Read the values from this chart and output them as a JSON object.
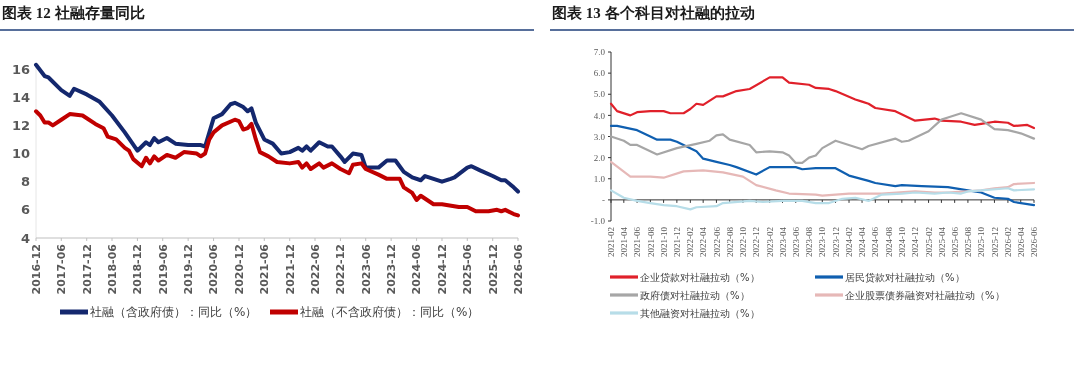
{
  "chart_data": [
    {
      "type": "line",
      "title": "图表 12 社融存量同比",
      "legend": "bottom",
      "grid": false,
      "ylim": [
        4,
        16.5
      ],
      "yticks": [
        4,
        6,
        8,
        10,
        12,
        14,
        16
      ],
      "xlim": [
        "2016-12",
        "2026-06"
      ],
      "xticks": [
        "2016-12",
        "2017-06",
        "2017-12",
        "2018-06",
        "2018-12",
        "2019-06",
        "2019-12",
        "2020-06",
        "2020-12",
        "2021-06",
        "2021-12",
        "2022-06",
        "2022-12",
        "2023-06",
        "2023-12",
        "2024-06",
        "2024-12",
        "2025-06",
        "2025-12",
        "2026-06"
      ],
      "series": [
        {
          "name": "社融（含政府债）：同比（%）",
          "color": "#14286e",
          "x": [
            "2016-12",
            "2017-02",
            "2017-03",
            "2017-06",
            "2017-08",
            "2017-09",
            "2017-12",
            "2018-03",
            "2018-06",
            "2018-09",
            "2018-12",
            "2019-02",
            "2019-03",
            "2019-04",
            "2019-05",
            "2019-07",
            "2019-09",
            "2019-12",
            "2020-03",
            "2020-04",
            "2020-06",
            "2020-08",
            "2020-10",
            "2020-11",
            "2021-01",
            "2021-02",
            "2021-03",
            "2021-04",
            "2021-06",
            "2021-08",
            "2021-10",
            "2021-12",
            "2022-02",
            "2022-03",
            "2022-04",
            "2022-05",
            "2022-07",
            "2022-09",
            "2022-10",
            "2022-12",
            "2023-01",
            "2023-03",
            "2023-05",
            "2023-06",
            "2023-09",
            "2023-11",
            "2024-01",
            "2024-03",
            "2024-05",
            "2024-07",
            "2024-08",
            "2024-12",
            "2025-02",
            "2025-03",
            "2025-06",
            "2025-07",
            "2025-09",
            "2025-12",
            "2026-02",
            "2026-03",
            "2026-05",
            "2026-06"
          ],
          "values": [
            16.3,
            15.5,
            15.4,
            14.5,
            14.1,
            14.6,
            14.2,
            13.7,
            12.7,
            11.5,
            10.2,
            10.8,
            10.6,
            11.1,
            10.8,
            11.1,
            10.7,
            10.6,
            10.6,
            10.5,
            12.5,
            12.8,
            13.5,
            13.6,
            13.3,
            13.0,
            13.2,
            12.2,
            11.0,
            10.7,
            10.0,
            10.1,
            10.4,
            10.2,
            10.5,
            10.2,
            10.8,
            10.5,
            10.5,
            9.8,
            9.4,
            10.0,
            9.9,
            9.0,
            9.0,
            9.5,
            9.5,
            8.7,
            8.3,
            8.1,
            8.4,
            8.0,
            8.2,
            8.3,
            9.0,
            9.1,
            8.8,
            8.4,
            8.1,
            8.1,
            7.6,
            7.3
          ]
        },
        {
          "name": "社融（不含政府债）：同比（%）",
          "color": "#c00000",
          "x": [
            "2016-12",
            "2017-01",
            "2017-02",
            "2017-03",
            "2017-04",
            "2017-06",
            "2017-08",
            "2017-11",
            "2018-02",
            "2018-04",
            "2018-05",
            "2018-07",
            "2018-09",
            "2018-10",
            "2018-11",
            "2019-01",
            "2019-02",
            "2019-03",
            "2019-04",
            "2019-05",
            "2019-07",
            "2019-09",
            "2019-11",
            "2020-02",
            "2020-03",
            "2020-04",
            "2020-05",
            "2020-06",
            "2020-08",
            "2020-11",
            "2020-12",
            "2021-01",
            "2021-02",
            "2021-03",
            "2021-04",
            "2021-05",
            "2021-07",
            "2021-09",
            "2021-12",
            "2022-02",
            "2022-03",
            "2022-04",
            "2022-05",
            "2022-07",
            "2022-08",
            "2022-10",
            "2022-12",
            "2023-02",
            "2023-03",
            "2023-05",
            "2023-06",
            "2023-09",
            "2023-11",
            "2024-02",
            "2024-03",
            "2024-05",
            "2024-06",
            "2024-07",
            "2024-10",
            "2024-12",
            "2025-04",
            "2025-06",
            "2025-08",
            "2025-11",
            "2026-01",
            "2026-02",
            "2026-03",
            "2026-05",
            "2026-06"
          ],
          "values": [
            13.0,
            12.7,
            12.2,
            12.2,
            12.0,
            12.4,
            12.8,
            12.7,
            12.1,
            11.8,
            11.2,
            11.0,
            10.4,
            10.2,
            9.6,
            9.1,
            9.7,
            9.3,
            9.8,
            9.5,
            9.9,
            9.7,
            10.1,
            10.0,
            9.8,
            10.0,
            11.0,
            11.5,
            12.0,
            12.4,
            12.3,
            11.7,
            11.8,
            12.1,
            11.0,
            10.1,
            9.8,
            9.4,
            9.3,
            9.4,
            9.0,
            9.3,
            8.9,
            9.3,
            9.0,
            9.3,
            8.9,
            8.6,
            9.2,
            9.3,
            8.9,
            8.5,
            8.2,
            8.2,
            7.6,
            7.2,
            6.7,
            7.0,
            6.4,
            6.4,
            6.2,
            6.2,
            5.9,
            5.9,
            6.0,
            5.9,
            6.0,
            5.7,
            5.6
          ]
        }
      ]
    },
    {
      "type": "line",
      "title": "图表 13 各个科目对社融的拉动",
      "legend": "bottom",
      "ylim": [
        -1,
        7
      ],
      "yticks": [
        {
          "value": -1,
          "label": "-1.0"
        },
        {
          "value": 0,
          "label": "-"
        },
        {
          "value": 1,
          "label": "1.0"
        },
        {
          "value": 2,
          "label": "2.0"
        },
        {
          "value": 3,
          "label": "3.0"
        },
        {
          "value": 4,
          "label": "4.0"
        },
        {
          "value": 5,
          "label": "5.0"
        },
        {
          "value": 6,
          "label": "6.0"
        },
        {
          "value": 7,
          "label": "7.0"
        }
      ],
      "xlim": [
        "2021-02",
        "2026-06"
      ],
      "xticks": [
        "2021-02",
        "2021-04",
        "2021-06",
        "2021-08",
        "2021-10",
        "2021-12",
        "2022-02",
        "2022-04",
        "2022-06",
        "2022-08",
        "2022-10",
        "2022-12",
        "2023-02",
        "2023-04",
        "2023-06",
        "2023-08",
        "2023-10",
        "2023-12",
        "2024-02",
        "2024-04",
        "2024-06",
        "2024-08",
        "2024-10",
        "2024-12",
        "2025-02",
        "2025-04",
        "2025-06",
        "2025-08",
        "2025-10",
        "2025-12",
        "2026-02",
        "2026-04",
        "2026-06"
      ],
      "series": [
        {
          "name": "企业贷款对社融拉动（%）",
          "color": "#e0202a",
          "x": [
            "2021-02",
            "2021-03",
            "2021-05",
            "2021-06",
            "2021-08",
            "2021-10",
            "2021-11",
            "2022-01",
            "2022-02",
            "2022-03",
            "2022-04",
            "2022-06",
            "2022-07",
            "2022-09",
            "2022-11",
            "2023-02",
            "2023-04",
            "2023-05",
            "2023-08",
            "2023-09",
            "2023-11",
            "2023-12",
            "2024-03",
            "2024-04",
            "2024-05",
            "2024-06",
            "2024-09",
            "2024-12",
            "2025-03",
            "2025-04",
            "2025-07",
            "2025-09",
            "2025-10",
            "2025-12",
            "2026-02",
            "2026-03",
            "2026-05",
            "2026-06"
          ],
          "values": [
            4.55,
            4.2,
            4.0,
            4.15,
            4.2,
            4.2,
            4.1,
            4.1,
            4.3,
            4.55,
            4.5,
            4.9,
            4.9,
            5.15,
            5.25,
            5.8,
            5.8,
            5.55,
            5.45,
            5.3,
            5.25,
            5.15,
            4.75,
            4.65,
            4.55,
            4.35,
            4.2,
            3.75,
            3.85,
            3.75,
            3.7,
            3.55,
            3.6,
            3.7,
            3.65,
            3.5,
            3.55,
            3.4
          ]
        },
        {
          "name": "居民贷款对社融拉动（%）",
          "color": "#0f5fb0",
          "x": [
            "2021-02",
            "2021-03",
            "2021-06",
            "2021-08",
            "2021-09",
            "2021-11",
            "2021-12",
            "2022-03",
            "2022-04",
            "2022-06",
            "2022-08",
            "2022-09",
            "2022-12",
            "2023-02",
            "2023-06",
            "2023-07",
            "2023-09",
            "2023-12",
            "2024-02",
            "2024-05",
            "2024-06",
            "2024-09",
            "2024-10",
            "2025-01",
            "2025-05",
            "2025-08",
            "2025-10",
            "2025-12",
            "2026-02",
            "2026-03",
            "2026-06"
          ],
          "values": [
            3.5,
            3.5,
            3.3,
            3.0,
            2.85,
            2.85,
            2.75,
            2.3,
            1.95,
            1.8,
            1.65,
            1.55,
            1.2,
            1.55,
            1.55,
            1.45,
            1.5,
            1.5,
            1.15,
            0.9,
            0.8,
            0.65,
            0.7,
            0.65,
            0.6,
            0.45,
            0.35,
            0.1,
            0.05,
            -0.1,
            -0.25
          ]
        },
        {
          "name": "政府债对社融拉动（%）",
          "color": "#a6a6a6",
          "x": [
            "2021-02",
            "2021-04",
            "2021-05",
            "2021-06",
            "2021-09",
            "2021-12",
            "2022-03",
            "2022-05",
            "2022-06",
            "2022-07",
            "2022-08",
            "2022-11",
            "2022-12",
            "2023-02",
            "2023-04",
            "2023-05",
            "2023-06",
            "2023-07",
            "2023-08",
            "2023-09",
            "2023-10",
            "2023-12",
            "2024-04",
            "2024-05",
            "2024-09",
            "2024-10",
            "2024-11",
            "2025-02",
            "2025-04",
            "2025-05",
            "2025-07",
            "2025-10",
            "2025-12",
            "2026-02",
            "2026-04",
            "2026-06"
          ],
          "values": [
            3.0,
            2.8,
            2.6,
            2.6,
            2.15,
            2.45,
            2.65,
            2.8,
            3.05,
            3.1,
            2.85,
            2.6,
            2.25,
            2.3,
            2.25,
            2.1,
            1.75,
            1.75,
            2.0,
            2.1,
            2.45,
            2.8,
            2.4,
            2.55,
            2.9,
            2.75,
            2.8,
            3.25,
            3.8,
            3.9,
            4.1,
            3.8,
            3.35,
            3.3,
            3.15,
            2.9
          ]
        },
        {
          "name": "企业股票债券融资对社融拉动（%）",
          "color": "#e6b8b7",
          "x": [
            "2021-02",
            "2021-05",
            "2021-08",
            "2021-10",
            "2022-01",
            "2022-04",
            "2022-07",
            "2022-10",
            "2022-12",
            "2023-03",
            "2023-05",
            "2023-09",
            "2023-10",
            "2024-02",
            "2024-04",
            "2024-07",
            "2024-12",
            "2025-03",
            "2025-05",
            "2025-10",
            "2025-12",
            "2026-02",
            "2026-03",
            "2026-06"
          ],
          "values": [
            1.8,
            1.1,
            1.1,
            1.05,
            1.35,
            1.4,
            1.3,
            1.1,
            0.7,
            0.45,
            0.3,
            0.25,
            0.2,
            0.3,
            0.3,
            0.3,
            0.4,
            0.35,
            0.35,
            0.45,
            0.55,
            0.6,
            0.75,
            0.8
          ]
        },
        {
          "name": "其他融资对社融拉动（%）",
          "color": "#b7dde8",
          "x": [
            "2021-02",
            "2021-04",
            "2021-06",
            "2021-08",
            "2021-10",
            "2021-12",
            "2022-02",
            "2022-03",
            "2022-06",
            "2022-07",
            "2022-11",
            "2023-01",
            "2023-04",
            "2023-07",
            "2023-09",
            "2023-11",
            "2024-01",
            "2024-03",
            "2024-05",
            "2024-07",
            "2024-10",
            "2024-12",
            "2025-03",
            "2025-05",
            "2025-07",
            "2025-08",
            "2025-10",
            "2026-02",
            "2026-03",
            "2026-06"
          ],
          "values": [
            0.45,
            0.1,
            -0.05,
            -0.15,
            -0.25,
            -0.3,
            -0.45,
            -0.35,
            -0.3,
            -0.15,
            -0.05,
            -0.1,
            -0.05,
            -0.05,
            -0.15,
            -0.15,
            0.05,
            0.1,
            -0.05,
            0.25,
            0.3,
            0.35,
            0.3,
            0.35,
            0.3,
            0.4,
            0.45,
            0.55,
            0.45,
            0.5
          ]
        }
      ]
    }
  ]
}
